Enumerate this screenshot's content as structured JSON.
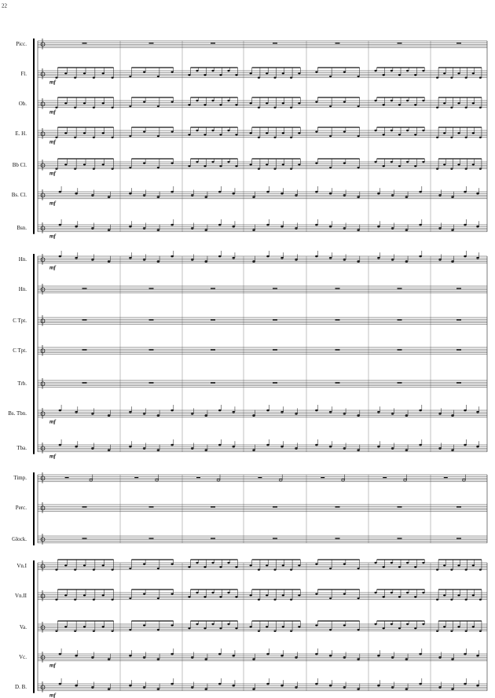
{
  "page_number": "22",
  "systems": [
    {
      "staves": [
        {
          "label": "Picc."
        },
        {
          "label": "Fl.",
          "dynamic": "mf"
        },
        {
          "label": "Ob.",
          "dynamic": "mf"
        },
        {
          "label": "E. H.",
          "dynamic": "mf"
        },
        {
          "label": "Bb Cl.",
          "dynamic": "mf"
        },
        {
          "label": "Bs. Cl.",
          "dynamic": "mf"
        },
        {
          "label": "Bsn.",
          "dynamic": "mf"
        }
      ]
    },
    {
      "staves": [
        {
          "label": "Hn.",
          "dynamic": "mf"
        },
        {
          "label": "Hn."
        },
        {
          "label": "C Tpt."
        },
        {
          "label": "C Tpt."
        },
        {
          "label": "Trb."
        },
        {
          "label": "Bs. Tbn.",
          "dynamic": "mf"
        },
        {
          "label": "Tba.",
          "dynamic": "mf"
        }
      ]
    },
    {
      "staves": [
        {
          "label": "Timp."
        },
        {
          "label": "Perc."
        },
        {
          "label": "Glock."
        }
      ]
    },
    {
      "staves": [
        {
          "label": "Vn.I"
        },
        {
          "label": "Vn.II"
        },
        {
          "label": "Va."
        },
        {
          "label": "Vc.",
          "dynamic": "mf"
        },
        {
          "label": "D. B.",
          "dynamic": "mf"
        }
      ]
    }
  ]
}
